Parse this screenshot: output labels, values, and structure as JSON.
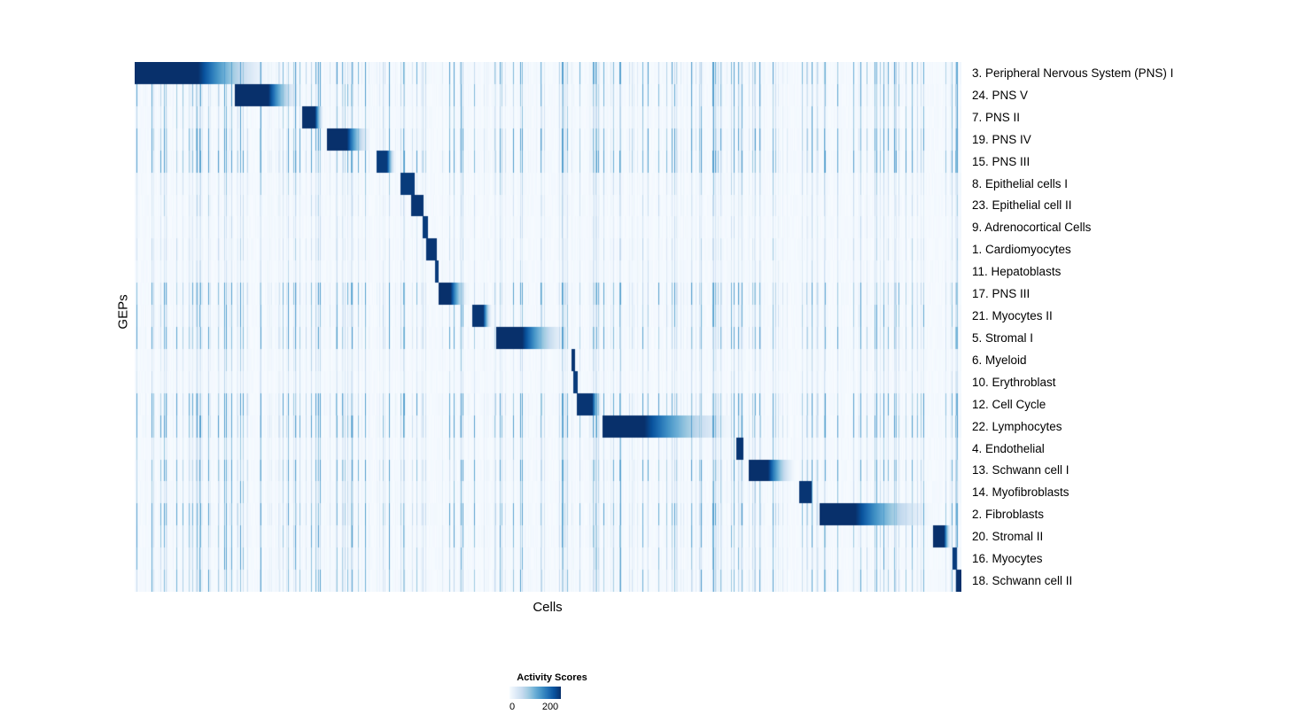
{
  "chart_data": {
    "type": "heatmap",
    "title": "",
    "xlabel": "Cells",
    "ylabel": "GEPs",
    "legend": {
      "title": "Activity Scores",
      "min": 0,
      "max": 200,
      "tick_labels": [
        "0",
        "200"
      ]
    },
    "value_range": [
      0,
      250
    ],
    "colormap": [
      "#f7fbff",
      "#deebf7",
      "#c6dbef",
      "#9ecae1",
      "#6baed6",
      "#4292c6",
      "#2171b5",
      "#08519c",
      "#08306b"
    ],
    "n_rows": 24,
    "n_cells_rendered": 933,
    "description": "Cells (columns) are grouped by their maximal GEP so high activity blocks run diagonally; block_start/block_end are fractions of the cell axis where each GEP is highly active; peak is the approximate activity score at the darkest part of the block; noise is relative background streak intensity.",
    "rows": [
      {
        "label": "3. Peripheral Nervous System (PNS) I",
        "block_start": 0.0,
        "block_end": 0.17,
        "fade": true,
        "core": 0.45,
        "peak": 250,
        "noise": 0.8
      },
      {
        "label": "24. PNS V",
        "block_start": 0.121,
        "block_end": 0.202,
        "fade": true,
        "core": 0.5,
        "peak": 250,
        "noise": 0.65
      },
      {
        "label": "7. PNS II",
        "block_start": 0.202,
        "block_end": 0.229,
        "fade": true,
        "core": 0.6,
        "peak": 250,
        "noise": 0.5
      },
      {
        "label": "19. PNS IV",
        "block_start": 0.232,
        "block_end": 0.287,
        "fade": true,
        "core": 0.45,
        "peak": 250,
        "noise": 0.8
      },
      {
        "label": "15. PNS III",
        "block_start": 0.292,
        "block_end": 0.316,
        "fade": true,
        "core": 0.55,
        "peak": 240,
        "noise": 0.9
      },
      {
        "label": "8. Epithelial cells I",
        "block_start": 0.321,
        "block_end": 0.339,
        "fade": false,
        "core": 1,
        "peak": 240,
        "noise": 0.35
      },
      {
        "label": "23. Epithelial cell II",
        "block_start": 0.334,
        "block_end": 0.349,
        "fade": false,
        "core": 1,
        "peak": 245,
        "noise": 0.3
      },
      {
        "label": "9. Adrenocortical Cells",
        "block_start": 0.348,
        "block_end": 0.355,
        "fade": false,
        "core": 1,
        "peak": 240,
        "noise": 0.25
      },
      {
        "label": "1. Cardiomyocytes",
        "block_start": 0.353,
        "block_end": 0.365,
        "fade": false,
        "core": 1,
        "peak": 245,
        "noise": 0.3
      },
      {
        "label": "11. Hepatoblasts",
        "block_start": 0.363,
        "block_end": 0.368,
        "fade": false,
        "core": 1,
        "peak": 240,
        "noise": 0.25
      },
      {
        "label": "17. PNS III",
        "block_start": 0.367,
        "block_end": 0.405,
        "fade": true,
        "core": 0.4,
        "peak": 250,
        "noise": 0.8
      },
      {
        "label": "21. Myocytes II",
        "block_start": 0.408,
        "block_end": 0.433,
        "fade": true,
        "core": 0.55,
        "peak": 245,
        "noise": 0.6
      },
      {
        "label": "5. Stromal I",
        "block_start": 0.437,
        "block_end": 0.528,
        "fade": true,
        "core": 0.35,
        "peak": 250,
        "noise": 0.7
      },
      {
        "label": "6. Myeloid",
        "block_start": 0.528,
        "block_end": 0.533,
        "fade": false,
        "core": 1,
        "peak": 245,
        "noise": 0.3
      },
      {
        "label": "10. Erythroblast",
        "block_start": 0.531,
        "block_end": 0.536,
        "fade": false,
        "core": 1,
        "peak": 240,
        "noise": 0.25
      },
      {
        "label": "12. Cell Cycle",
        "block_start": 0.535,
        "block_end": 0.566,
        "fade": true,
        "core": 0.6,
        "peak": 245,
        "noise": 0.9
      },
      {
        "label": "22. Lymphocytes",
        "block_start": 0.566,
        "block_end": 0.735,
        "fade": true,
        "core": 0.3,
        "peak": 250,
        "noise": 0.9
      },
      {
        "label": "4. Endothelial",
        "block_start": 0.728,
        "block_end": 0.737,
        "fade": false,
        "core": 1,
        "peak": 245,
        "noise": 0.4
      },
      {
        "label": "13. Schwann cell I",
        "block_start": 0.743,
        "block_end": 0.802,
        "fade": true,
        "core": 0.4,
        "peak": 250,
        "noise": 0.7
      },
      {
        "label": "14. Myofibroblasts",
        "block_start": 0.804,
        "block_end": 0.819,
        "fade": false,
        "core": 1,
        "peak": 245,
        "noise": 0.5
      },
      {
        "label": "2. Fibroblasts",
        "block_start": 0.829,
        "block_end": 0.973,
        "fade": true,
        "core": 0.3,
        "peak": 250,
        "noise": 0.8
      },
      {
        "label": "20. Stromal II",
        "block_start": 0.966,
        "block_end": 0.989,
        "fade": true,
        "core": 0.6,
        "peak": 250,
        "noise": 0.6
      },
      {
        "label": "16. Myocytes",
        "block_start": 0.99,
        "block_end": 0.995,
        "fade": false,
        "core": 1,
        "peak": 240,
        "noise": 0.5
      },
      {
        "label": "18. Schwann cell II",
        "block_start": 0.994,
        "block_end": 1.0,
        "fade": false,
        "core": 1,
        "peak": 250,
        "noise": 0.6
      }
    ]
  }
}
